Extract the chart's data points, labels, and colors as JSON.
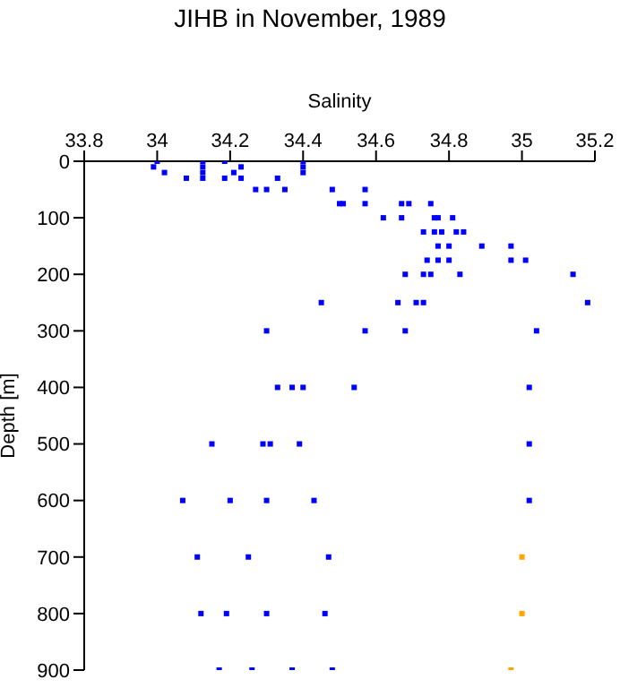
{
  "chart_data": {
    "type": "scatter",
    "title": "JIHB in November, 1989",
    "xlabel": "Salinity",
    "ylabel": "Depth [m]",
    "xlim": [
      33.8,
      35.2
    ],
    "xticks": [
      33.8,
      34,
      34.2,
      34.4,
      34.6,
      34.8,
      35,
      35.2
    ],
    "ylim": [
      900,
      0
    ],
    "yticks": [
      0,
      100,
      200,
      300,
      400,
      500,
      600,
      700,
      800,
      900
    ],
    "grid": false,
    "legend": false,
    "marker": "square",
    "series": [
      {
        "color": "#0000ff",
        "x": [
          34.0,
          33.99,
          34.02,
          34.08,
          34.125,
          34.125,
          34.125,
          34.125,
          34.185,
          34.185,
          34.21,
          34.23,
          34.23,
          34.27,
          34.3,
          34.33,
          34.35,
          34.4,
          34.4,
          34.4,
          34.48,
          34.5,
          34.57,
          34.51,
          34.57,
          34.67,
          34.69,
          34.75,
          34.62,
          34.67,
          34.76,
          34.77,
          34.81,
          34.73,
          34.76,
          34.78,
          34.82,
          34.84,
          34.77,
          34.8,
          34.89,
          34.97,
          34.74,
          34.77,
          34.8,
          34.97,
          35.01,
          34.68,
          34.73,
          34.75,
          34.83,
          35.14,
          34.45,
          34.66,
          34.71,
          34.73,
          35.18,
          34.3,
          34.57,
          34.68,
          35.04,
          34.33,
          34.37,
          34.4,
          34.54,
          35.02,
          34.15,
          34.29,
          34.31,
          34.39,
          35.02,
          34.07,
          34.2,
          34.3,
          34.43,
          35.02,
          34.11,
          34.25,
          34.47,
          34.12,
          34.19,
          34.3,
          34.46,
          34.17,
          34.26,
          34.37,
          34.48
        ],
        "values": [
          0,
          10,
          20,
          30,
          0,
          10,
          20,
          30,
          0,
          30,
          20,
          10,
          30,
          50,
          50,
          30,
          50,
          0,
          10,
          20,
          50,
          75,
          50,
          75,
          75,
          75,
          75,
          75,
          100,
          100,
          100,
          100,
          100,
          125,
          125,
          125,
          125,
          125,
          150,
          150,
          150,
          150,
          175,
          175,
          175,
          175,
          175,
          200,
          200,
          200,
          200,
          200,
          250,
          250,
          250,
          250,
          250,
          300,
          300,
          300,
          300,
          400,
          400,
          400,
          400,
          400,
          500,
          500,
          500,
          500,
          500,
          600,
          600,
          600,
          600,
          600,
          700,
          700,
          700,
          800,
          800,
          800,
          800,
          900,
          900,
          900,
          900
        ]
      },
      {
        "color": "#ffa500",
        "x": [
          35.0,
          35.0,
          34.97
        ],
        "values": [
          700,
          800,
          900
        ]
      }
    ]
  }
}
